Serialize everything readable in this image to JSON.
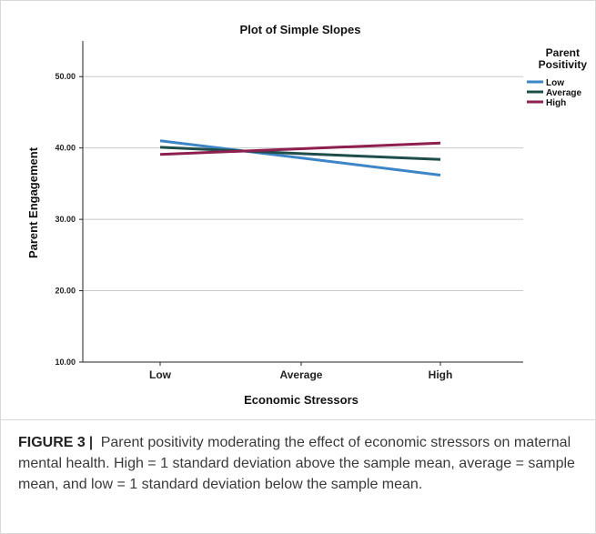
{
  "chart_data": {
    "type": "line",
    "title": "Plot of Simple Slopes",
    "xlabel": "Economic Stressors",
    "ylabel": "Parent Engagement",
    "categories": [
      "Low",
      "Average",
      "High"
    ],
    "ylim": [
      10,
      55
    ],
    "yticks": [
      "10.00",
      "20.00",
      "30.00",
      "40.00",
      "50.00"
    ],
    "grid": true,
    "legend": {
      "title_line1": "Parent",
      "title_line2": "Positivity",
      "placement": "top-right"
    },
    "series": [
      {
        "name": "Low",
        "color": "#3d85c6",
        "values": [
          41.0,
          38.6,
          36.2
        ]
      },
      {
        "name": "Average",
        "color": "#1e4d4a",
        "values": [
          40.1,
          39.2,
          38.4
        ]
      },
      {
        "name": "High",
        "color": "#8e1f4e",
        "values": [
          39.1,
          39.9,
          40.7
        ]
      }
    ]
  },
  "caption": {
    "label": "FIGURE 3",
    "separator": "|",
    "text": "Parent positivity moderating the effect of economic stressors on maternal mental health. High = 1 standard deviation above the sample mean, average = sample mean, and low = 1 standard deviation below the sample mean."
  }
}
